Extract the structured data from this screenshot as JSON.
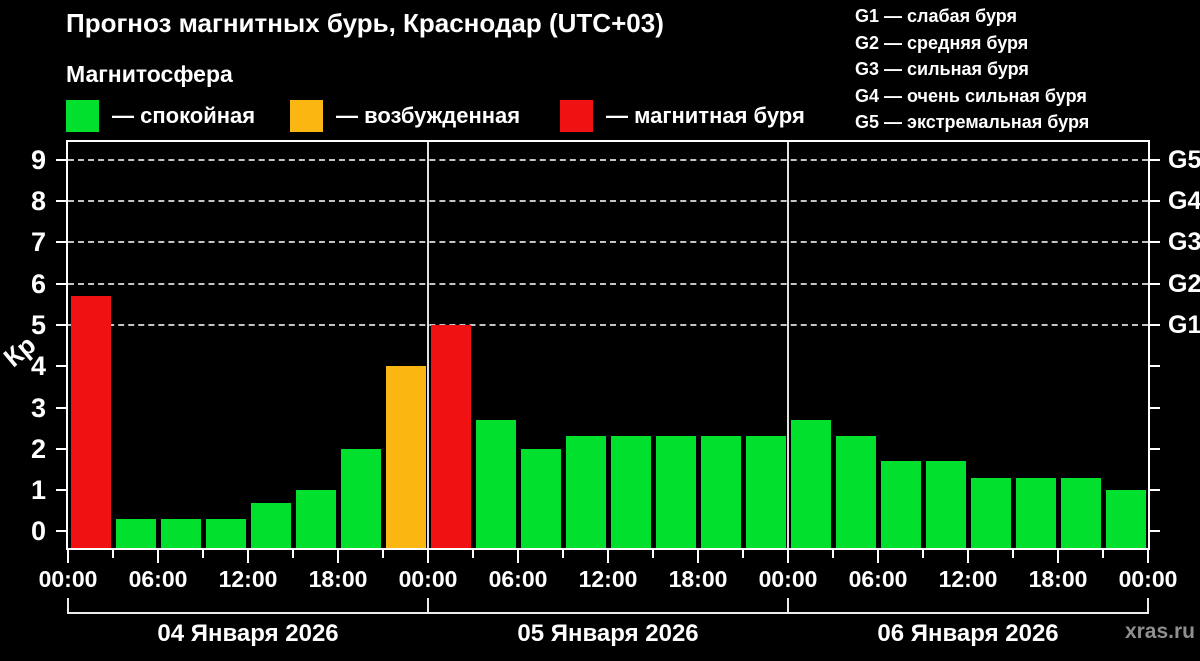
{
  "title": "Прогноз магнитных бурь, Краснодар (UTC+03)",
  "subtitle": "Магнитосфера",
  "legend": {
    "items": [
      {
        "key": "quiet",
        "label": "— спокойная",
        "color": "#00e02c"
      },
      {
        "key": "excited",
        "label": "— возбужденная",
        "color": "#fcb612"
      },
      {
        "key": "storm",
        "label": "— магнитная буря",
        "color": "#f01212"
      }
    ]
  },
  "storm_scale": {
    "items": [
      {
        "label": "G1 — слабая буря"
      },
      {
        "label": "G2 — средняя буря"
      },
      {
        "label": "G3 — сильная буря"
      },
      {
        "label": "G4 — очень сильная буря"
      },
      {
        "label": "G5 — экстремальная буря"
      }
    ]
  },
  "watermark": "xras.ru",
  "chart_data": {
    "type": "bar",
    "title": "Прогноз магнитных бурь, Краснодар (UTC+03)",
    "ylabel": "Кр",
    "ylim": [
      -0.4,
      9.43
    ],
    "yticks": [
      0,
      1,
      2,
      3,
      4,
      5,
      6,
      7,
      8,
      9
    ],
    "grid_dashed_at_kp": [
      5,
      6,
      7,
      8,
      9
    ],
    "right_axis": [
      {
        "kp": 5,
        "label": "G1"
      },
      {
        "kp": 6,
        "label": "G2"
      },
      {
        "kp": 7,
        "label": "G3"
      },
      {
        "kp": 8,
        "label": "G4"
      },
      {
        "kp": 9,
        "label": "G5"
      }
    ],
    "hours_per_bar": 3,
    "x_tick_labels": [
      "00:00",
      "06:00",
      "12:00",
      "18:00",
      "00:00",
      "06:00",
      "12:00",
      "18:00",
      "00:00",
      "06:00",
      "12:00",
      "18:00",
      "00:00"
    ],
    "thresholds": {
      "excited_min": 4,
      "storm_min": 5
    },
    "colors": {
      "quiet": "#00e02c",
      "excited": "#fcb612",
      "storm": "#f01212"
    },
    "days": [
      {
        "date": "04 Января 2026",
        "values": [
          5.7,
          0.3,
          0.3,
          0.3,
          0.7,
          1.0,
          2.0,
          4.0
        ]
      },
      {
        "date": "05 Января 2026",
        "values": [
          5.0,
          2.7,
          2.0,
          2.3,
          2.3,
          2.3,
          2.3,
          2.3
        ]
      },
      {
        "date": "06 Января 2026",
        "values": [
          2.7,
          2.3,
          1.7,
          1.7,
          1.3,
          1.3,
          1.3,
          1.0
        ]
      }
    ]
  }
}
